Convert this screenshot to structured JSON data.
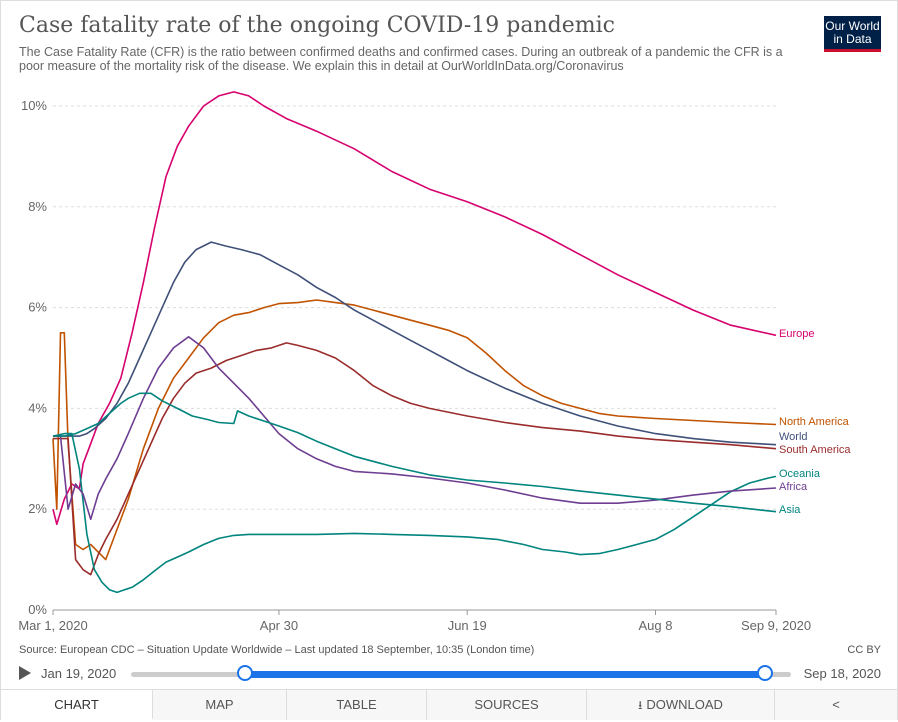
{
  "header": {
    "title": "Case fatality rate of the ongoing COVID-19 pandemic",
    "subtitle": "The Case Fatality Rate (CFR) is the ratio between confirmed deaths and confirmed cases. During an outbreak of a pandemic the CFR is a poor measure of the mortality risk of the disease. We explain this in detail at OurWorldInData.org/Coronavirus",
    "logo_line1": "Our World",
    "logo_line2": "in Data"
  },
  "chart_data": {
    "type": "line",
    "title": "Case fatality rate of the ongoing COVID-19 pandemic",
    "xlabel": "",
    "ylabel": "",
    "x_unit": "days since Mar 1, 2020",
    "xlim": [
      0,
      192
    ],
    "ylim": [
      0,
      10.5
    ],
    "x_ticks": [
      {
        "label": "Mar 1, 2020",
        "value": 0
      },
      {
        "label": "Apr 30",
        "value": 60
      },
      {
        "label": "Jun 19",
        "value": 110
      },
      {
        "label": "Aug 8",
        "value": 160
      },
      {
        "label": "Sep 9, 2020",
        "value": 192
      }
    ],
    "y_ticks": [
      {
        "label": "0%",
        "value": 0
      },
      {
        "label": "2%",
        "value": 2
      },
      {
        "label": "4%",
        "value": 4
      },
      {
        "label": "6%",
        "value": 6
      },
      {
        "label": "8%",
        "value": 8
      },
      {
        "label": "10%",
        "value": 10
      }
    ],
    "grid": "horizontal dashed",
    "series": [
      {
        "name": "Europe",
        "color": "#d6006f",
        "label_value": 5.45,
        "points": [
          [
            0,
            2.0
          ],
          [
            1,
            1.7
          ],
          [
            3,
            2.2
          ],
          [
            5,
            2.5
          ],
          [
            7,
            2.4
          ],
          [
            8,
            2.9
          ],
          [
            10,
            3.3
          ],
          [
            12,
            3.7
          ],
          [
            15,
            4.1
          ],
          [
            18,
            4.6
          ],
          [
            21,
            5.5
          ],
          [
            24,
            6.5
          ],
          [
            27,
            7.6
          ],
          [
            30,
            8.6
          ],
          [
            33,
            9.2
          ],
          [
            36,
            9.6
          ],
          [
            40,
            10.0
          ],
          [
            44,
            10.2
          ],
          [
            48,
            10.28
          ],
          [
            52,
            10.2
          ],
          [
            56,
            10.0
          ],
          [
            62,
            9.75
          ],
          [
            70,
            9.5
          ],
          [
            80,
            9.15
          ],
          [
            90,
            8.7
          ],
          [
            100,
            8.35
          ],
          [
            110,
            8.1
          ],
          [
            120,
            7.8
          ],
          [
            130,
            7.45
          ],
          [
            140,
            7.05
          ],
          [
            150,
            6.65
          ],
          [
            160,
            6.3
          ],
          [
            170,
            5.95
          ],
          [
            180,
            5.65
          ],
          [
            192,
            5.45
          ]
        ]
      },
      {
        "name": "North America",
        "color": "#c15300",
        "label_value": 3.68,
        "points": [
          [
            0,
            3.4
          ],
          [
            1,
            2.0
          ],
          [
            2,
            5.5
          ],
          [
            3,
            5.5
          ],
          [
            4,
            3.3
          ],
          [
            6,
            1.3
          ],
          [
            8,
            1.2
          ],
          [
            10,
            1.3
          ],
          [
            14,
            1.0
          ],
          [
            16,
            1.4
          ],
          [
            20,
            2.2
          ],
          [
            24,
            3.2
          ],
          [
            28,
            4.0
          ],
          [
            32,
            4.6
          ],
          [
            36,
            5.0
          ],
          [
            40,
            5.4
          ],
          [
            44,
            5.7
          ],
          [
            48,
            5.85
          ],
          [
            52,
            5.9
          ],
          [
            56,
            6.0
          ],
          [
            60,
            6.08
          ],
          [
            65,
            6.1
          ],
          [
            70,
            6.15
          ],
          [
            75,
            6.1
          ],
          [
            80,
            6.05
          ],
          [
            85,
            5.95
          ],
          [
            90,
            5.85
          ],
          [
            95,
            5.75
          ],
          [
            100,
            5.65
          ],
          [
            105,
            5.55
          ],
          [
            110,
            5.4
          ],
          [
            115,
            5.1
          ],
          [
            120,
            4.75
          ],
          [
            125,
            4.45
          ],
          [
            130,
            4.25
          ],
          [
            135,
            4.1
          ],
          [
            140,
            4.0
          ],
          [
            145,
            3.9
          ],
          [
            150,
            3.85
          ],
          [
            160,
            3.8
          ],
          [
            170,
            3.76
          ],
          [
            180,
            3.72
          ],
          [
            192,
            3.68
          ]
        ]
      },
      {
        "name": "World",
        "color": "#3f5078",
        "label_value": 3.28,
        "points": [
          [
            0,
            3.45
          ],
          [
            3,
            3.45
          ],
          [
            5,
            3.45
          ],
          [
            7,
            3.45
          ],
          [
            9,
            3.5
          ],
          [
            11,
            3.6
          ],
          [
            14,
            3.8
          ],
          [
            17,
            4.1
          ],
          [
            20,
            4.5
          ],
          [
            23,
            5.0
          ],
          [
            26,
            5.5
          ],
          [
            29,
            6.0
          ],
          [
            32,
            6.5
          ],
          [
            35,
            6.9
          ],
          [
            38,
            7.15
          ],
          [
            42,
            7.3
          ],
          [
            46,
            7.22
          ],
          [
            50,
            7.15
          ],
          [
            55,
            7.05
          ],
          [
            60,
            6.85
          ],
          [
            65,
            6.65
          ],
          [
            70,
            6.4
          ],
          [
            75,
            6.2
          ],
          [
            80,
            5.95
          ],
          [
            85,
            5.75
          ],
          [
            90,
            5.55
          ],
          [
            95,
            5.35
          ],
          [
            100,
            5.15
          ],
          [
            105,
            4.95
          ],
          [
            110,
            4.75
          ],
          [
            120,
            4.4
          ],
          [
            130,
            4.1
          ],
          [
            140,
            3.85
          ],
          [
            150,
            3.65
          ],
          [
            160,
            3.5
          ],
          [
            170,
            3.4
          ],
          [
            180,
            3.33
          ],
          [
            192,
            3.28
          ]
        ]
      },
      {
        "name": "South America",
        "color": "#9a2c2c",
        "label_value": 3.2,
        "points": [
          [
            0,
            3.4
          ],
          [
            2,
            3.4
          ],
          [
            4,
            3.4
          ],
          [
            6,
            1.0
          ],
          [
            8,
            0.8
          ],
          [
            10,
            0.7
          ],
          [
            12,
            1.1
          ],
          [
            14,
            1.4
          ],
          [
            17,
            1.8
          ],
          [
            20,
            2.3
          ],
          [
            23,
            2.8
          ],
          [
            26,
            3.3
          ],
          [
            29,
            3.8
          ],
          [
            32,
            4.2
          ],
          [
            35,
            4.5
          ],
          [
            38,
            4.7
          ],
          [
            42,
            4.8
          ],
          [
            46,
            4.95
          ],
          [
            50,
            5.05
          ],
          [
            54,
            5.15
          ],
          [
            58,
            5.2
          ],
          [
            62,
            5.3
          ],
          [
            65,
            5.25
          ],
          [
            70,
            5.15
          ],
          [
            75,
            5.0
          ],
          [
            80,
            4.75
          ],
          [
            85,
            4.45
          ],
          [
            90,
            4.25
          ],
          [
            95,
            4.1
          ],
          [
            100,
            4.0
          ],
          [
            110,
            3.85
          ],
          [
            120,
            3.72
          ],
          [
            130,
            3.62
          ],
          [
            140,
            3.55
          ],
          [
            150,
            3.45
          ],
          [
            160,
            3.38
          ],
          [
            170,
            3.33
          ],
          [
            180,
            3.28
          ],
          [
            192,
            3.2
          ]
        ]
      },
      {
        "name": "Oceania",
        "color": "#00847e",
        "label_value": 2.65,
        "points": [
          [
            0,
            3.45
          ],
          [
            3,
            3.5
          ],
          [
            5,
            3.5
          ],
          [
            7,
            2.8
          ],
          [
            9,
            1.5
          ],
          [
            11,
            0.8
          ],
          [
            13,
            0.55
          ],
          [
            15,
            0.4
          ],
          [
            17,
            0.35
          ],
          [
            19,
            0.4
          ],
          [
            21,
            0.45
          ],
          [
            24,
            0.6
          ],
          [
            27,
            0.78
          ],
          [
            30,
            0.95
          ],
          [
            33,
            1.05
          ],
          [
            36,
            1.15
          ],
          [
            40,
            1.3
          ],
          [
            44,
            1.42
          ],
          [
            48,
            1.48
          ],
          [
            52,
            1.5
          ],
          [
            60,
            1.5
          ],
          [
            70,
            1.5
          ],
          [
            80,
            1.52
          ],
          [
            90,
            1.5
          ],
          [
            100,
            1.48
          ],
          [
            110,
            1.45
          ],
          [
            118,
            1.4
          ],
          [
            125,
            1.3
          ],
          [
            130,
            1.2
          ],
          [
            136,
            1.15
          ],
          [
            140,
            1.1
          ],
          [
            145,
            1.12
          ],
          [
            150,
            1.2
          ],
          [
            155,
            1.3
          ],
          [
            160,
            1.4
          ],
          [
            165,
            1.6
          ],
          [
            170,
            1.85
          ],
          [
            175,
            2.1
          ],
          [
            180,
            2.35
          ],
          [
            185,
            2.52
          ],
          [
            190,
            2.62
          ],
          [
            192,
            2.65
          ]
        ]
      },
      {
        "name": "Africa",
        "color": "#6d3e91",
        "label_value": 2.42,
        "points": [
          [
            0,
            3.45
          ],
          [
            2,
            3.45
          ],
          [
            4,
            2.0
          ],
          [
            6,
            2.5
          ],
          [
            8,
            2.3
          ],
          [
            10,
            1.8
          ],
          [
            12,
            2.3
          ],
          [
            14,
            2.6
          ],
          [
            17,
            3.0
          ],
          [
            20,
            3.5
          ],
          [
            24,
            4.2
          ],
          [
            28,
            4.8
          ],
          [
            32,
            5.2
          ],
          [
            36,
            5.42
          ],
          [
            40,
            5.2
          ],
          [
            44,
            4.8
          ],
          [
            48,
            4.5
          ],
          [
            52,
            4.2
          ],
          [
            56,
            3.85
          ],
          [
            60,
            3.5
          ],
          [
            65,
            3.2
          ],
          [
            70,
            3.0
          ],
          [
            75,
            2.85
          ],
          [
            80,
            2.75
          ],
          [
            90,
            2.7
          ],
          [
            100,
            2.62
          ],
          [
            110,
            2.52
          ],
          [
            120,
            2.38
          ],
          [
            130,
            2.22
          ],
          [
            140,
            2.12
          ],
          [
            150,
            2.12
          ],
          [
            160,
            2.18
          ],
          [
            170,
            2.28
          ],
          [
            180,
            2.36
          ],
          [
            192,
            2.42
          ]
        ]
      },
      {
        "name": "Asia",
        "color": "#00847e",
        "label_value": 1.95,
        "points": [
          [
            0,
            3.45
          ],
          [
            3,
            3.45
          ],
          [
            6,
            3.5
          ],
          [
            9,
            3.6
          ],
          [
            12,
            3.7
          ],
          [
            15,
            3.9
          ],
          [
            18,
            4.1
          ],
          [
            20,
            4.2
          ],
          [
            23,
            4.3
          ],
          [
            26,
            4.3
          ],
          [
            29,
            4.15
          ],
          [
            33,
            4.0
          ],
          [
            37,
            3.85
          ],
          [
            41,
            3.78
          ],
          [
            44,
            3.72
          ],
          [
            48,
            3.7
          ],
          [
            49,
            3.95
          ],
          [
            52,
            3.85
          ],
          [
            56,
            3.75
          ],
          [
            60,
            3.65
          ],
          [
            65,
            3.52
          ],
          [
            70,
            3.35
          ],
          [
            75,
            3.2
          ],
          [
            80,
            3.05
          ],
          [
            90,
            2.85
          ],
          [
            100,
            2.68
          ],
          [
            110,
            2.58
          ],
          [
            120,
            2.52
          ],
          [
            130,
            2.45
          ],
          [
            140,
            2.36
          ],
          [
            150,
            2.28
          ],
          [
            160,
            2.2
          ],
          [
            170,
            2.12
          ],
          [
            180,
            2.05
          ],
          [
            192,
            1.95
          ]
        ]
      }
    ]
  },
  "footer": {
    "source": "Source: European CDC – Situation Update Worldwide – Last updated 18 September, 10:35 (London time)",
    "license": "CC BY"
  },
  "timeline": {
    "start_label": "Jan 19, 2020",
    "end_label": "Sep 18, 2020"
  },
  "tabs": [
    {
      "label": "CHART"
    },
    {
      "label": "MAP"
    },
    {
      "label": "TABLE"
    },
    {
      "label": "SOURCES"
    },
    {
      "label": "DOWNLOAD"
    }
  ],
  "colors": {
    "accent": "#1a73e8",
    "logo_bg": "#002147",
    "logo_underline": "#c8102e"
  }
}
